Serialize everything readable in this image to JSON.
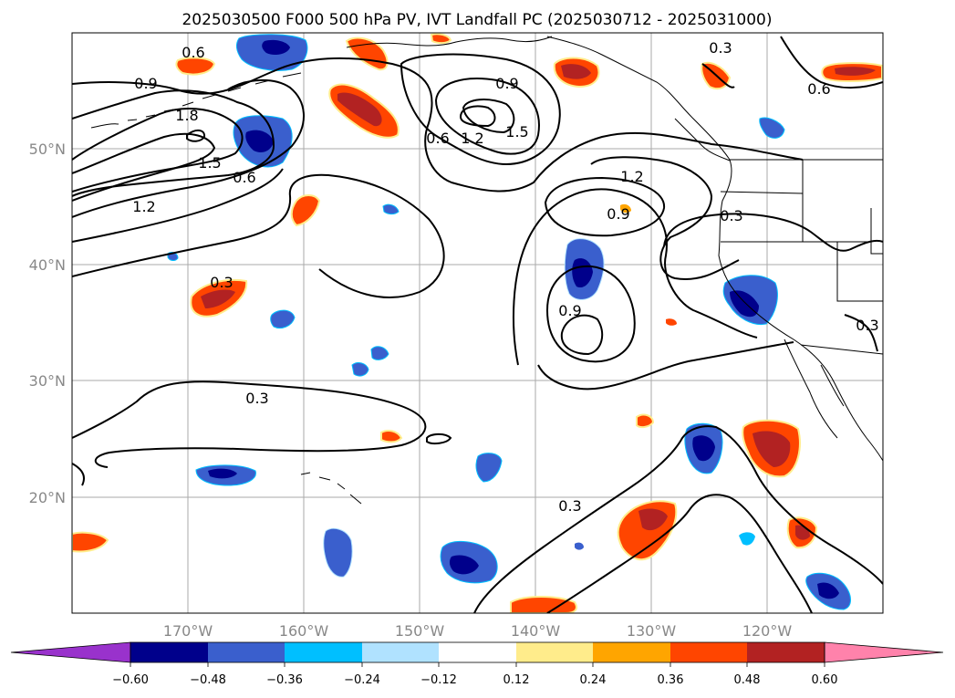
{
  "title": "2025030500 F000 500 hPa PV, IVT Landfall PC (2025030712 - 2025031000)",
  "lat_labels": [
    "50°N",
    "40°N",
    "30°N",
    "20°N"
  ],
  "lon_labels": [
    "170°W",
    "160°W",
    "150°W",
    "140°W",
    "130°W",
    "120°W"
  ],
  "contour_levels": [
    "0.3",
    "0.6",
    "0.9",
    "1.2",
    "1.5",
    "1.8"
  ],
  "contour_labels": [
    "0.6",
    "0.9",
    "1.8",
    "1.5",
    "0.6",
    "1.2",
    "0.9",
    "0.6",
    "1.2",
    "1.5",
    "1.2",
    "0.9",
    "0.3",
    "0.6",
    "0.3",
    "0.9",
    "0.3",
    "0.3",
    "0.3",
    "0.3"
  ],
  "colorbar": {
    "ticks": [
      "−0.60",
      "−0.48",
      "−0.36",
      "−0.24",
      "−0.12",
      "0.12",
      "0.24",
      "0.36",
      "0.48",
      "0.60"
    ],
    "colors": [
      "#9932cc",
      "#00008b",
      "#3a5fcd",
      "#00bfff",
      "#b0e2ff",
      "#ffffff",
      "#ffec8b",
      "#ffa500",
      "#ff4500",
      "#b22222",
      "#ff82ab"
    ]
  }
}
